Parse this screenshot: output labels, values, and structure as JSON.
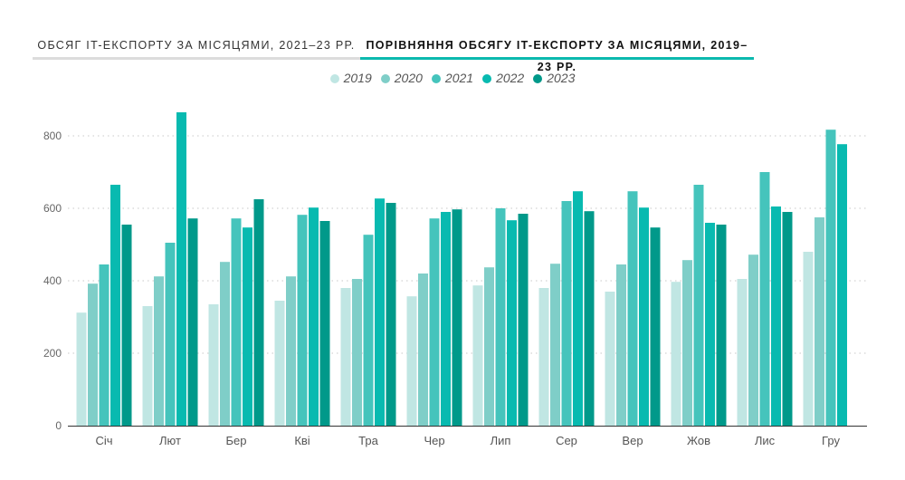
{
  "tabs": [
    {
      "label": "ОБСЯГ IT-ЕКСПОРТУ ЗА МІСЯЦЯМИ, 2021–23 РР.",
      "active": false
    },
    {
      "label": "ПОРІВНЯННЯ ОБСЯГУ IT-ЕКСПОРТУ ЗА МІСЯЦЯМИ, 2019–23 РР.",
      "active": true
    }
  ],
  "chart_data": {
    "type": "bar",
    "categories": [
      "Січ",
      "Лют",
      "Бер",
      "Кві",
      "Тра",
      "Чер",
      "Лип",
      "Сер",
      "Вер",
      "Жов",
      "Лис",
      "Гру"
    ],
    "series": [
      {
        "name": "2019",
        "color": "#c0e6e3",
        "values": [
          312,
          330,
          335,
          345,
          380,
          357,
          387,
          380,
          370,
          397,
          405,
          480
        ]
      },
      {
        "name": "2020",
        "color": "#7fcec8",
        "values": [
          392,
          412,
          452,
          412,
          405,
          420,
          437,
          447,
          445,
          457,
          472,
          575
        ]
      },
      {
        "name": "2021",
        "color": "#45c4bc",
        "values": [
          445,
          505,
          572,
          582,
          527,
          572,
          600,
          620,
          647,
          665,
          700,
          817
        ]
      },
      {
        "name": "2022",
        "color": "#08bab0",
        "values": [
          665,
          865,
          547,
          602,
          627,
          590,
          567,
          647,
          602,
          560,
          605,
          777
        ]
      },
      {
        "name": "2023",
        "color": "#00998a",
        "values": [
          555,
          572,
          625,
          565,
          615,
          597,
          585,
          592,
          547,
          555,
          590,
          null
        ]
      }
    ],
    "yticks": [
      0,
      200,
      400,
      600,
      800
    ],
    "ylim": [
      0,
      880
    ],
    "grid": true,
    "legend": "top-center"
  }
}
